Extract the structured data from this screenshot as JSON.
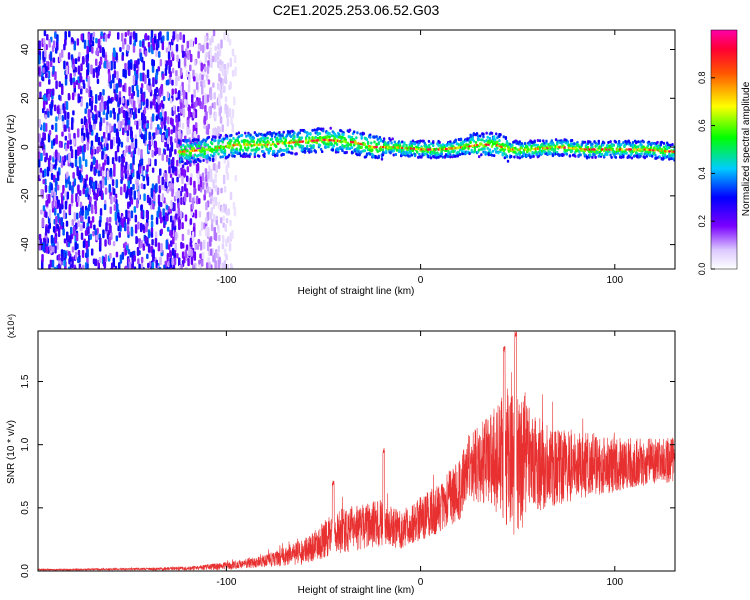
{
  "page": {
    "title": "C2E1.2025.253.06.52.G03"
  },
  "chart_data": [
    {
      "type": "heatmap",
      "title": "C2E1.2025.253.06.52.G03",
      "xlabel": "Height of straight line (km)",
      "ylabel": "Frequency (Hz)",
      "xlim": [
        -197,
        131
      ],
      "ylim": [
        -50,
        48
      ],
      "xticks": [
        -100,
        0,
        100
      ],
      "xtick_labels": [
        "-100",
        "0",
        "100"
      ],
      "yticks": [
        -40,
        -20,
        0,
        20,
        40
      ],
      "ytick_labels": [
        "-40",
        "-20",
        "0",
        "20",
        "40"
      ],
      "ridge": {
        "x": [
          -125,
          -110,
          -95,
          -80,
          -65,
          -50,
          -35,
          -25,
          -15,
          0,
          10,
          22,
          30,
          38,
          45,
          55,
          70,
          85,
          100,
          115,
          131
        ],
        "y": [
          -2,
          -1,
          1,
          1,
          2,
          3,
          2,
          0,
          0,
          -1,
          -1,
          0,
          1,
          1,
          -1,
          -1,
          0,
          -1,
          -1,
          -1,
          -2
        ]
      },
      "noise_region_x": [
        -197,
        -100
      ],
      "colorbar": {
        "label": "Normalized spectral amplitude",
        "range": [
          0,
          1
        ],
        "ticks": [
          0.0,
          0.2,
          0.4,
          0.6,
          0.8
        ],
        "tick_labels": [
          "0.0",
          "0.2",
          "0.4",
          "0.6",
          "0.8"
        ]
      }
    },
    {
      "type": "line",
      "xlabel": "Height of straight line (km)",
      "ylabel": "SNR (10 * v/v)",
      "y_multiplier": "(x10⁴)",
      "xlim": [
        -197,
        131
      ],
      "ylim": [
        0,
        1.9
      ],
      "xticks": [
        -100,
        0,
        100
      ],
      "xtick_labels": [
        "-100",
        "0",
        "100"
      ],
      "yticks": [
        0.0,
        0.5,
        1.0,
        1.5
      ],
      "ytick_labels": [
        "0.0",
        "0.5",
        "1.0",
        "1.5"
      ],
      "color": "#e83030",
      "series": [
        {
          "x": [
            -197,
            -150,
            -120,
            -100,
            -80,
            -60,
            -50,
            -40,
            -30,
            -20,
            -10,
            0,
            10,
            20,
            25,
            35,
            45,
            50,
            55,
            60,
            70,
            80,
            90,
            100,
            110,
            120,
            131
          ],
          "y": [
            0.01,
            0.015,
            0.02,
            0.04,
            0.08,
            0.15,
            0.25,
            0.32,
            0.35,
            0.38,
            0.32,
            0.42,
            0.5,
            0.65,
            0.82,
            0.88,
            0.92,
            0.95,
            0.9,
            0.85,
            0.82,
            0.84,
            0.85,
            0.84,
            0.86,
            0.87,
            0.88
          ],
          "spread": [
            0.005,
            0.008,
            0.015,
            0.03,
            0.05,
            0.1,
            0.15,
            0.18,
            0.18,
            0.2,
            0.15,
            0.18,
            0.2,
            0.25,
            0.28,
            0.35,
            0.6,
            0.75,
            0.45,
            0.38,
            0.3,
            0.28,
            0.25,
            0.22,
            0.2,
            0.18,
            0.18
          ]
        }
      ],
      "peaks": [
        {
          "x": -45,
          "y": 0.72
        },
        {
          "x": -19,
          "y": 0.97
        },
        {
          "x": 43,
          "y": 1.78
        },
        {
          "x": 49,
          "y": 1.9
        }
      ]
    }
  ]
}
